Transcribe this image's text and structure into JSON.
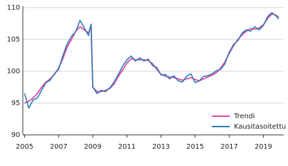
{
  "chart_data": {
    "type": "line",
    "x": [
      2005,
      2005.25,
      2005.5,
      2005.75,
      2006,
      2006.25,
      2006.5,
      2006.75,
      2007,
      2007.25,
      2007.5,
      2007.75,
      2008,
      2008.25,
      2008.5,
      2008.75,
      2008.9,
      2009,
      2009.25,
      2009.5,
      2009.75,
      2010,
      2010.25,
      2010.5,
      2010.75,
      2011,
      2011.25,
      2011.5,
      2011.75,
      2012,
      2012.25,
      2012.5,
      2012.75,
      2013,
      2013.25,
      2013.5,
      2013.75,
      2014,
      2014.25,
      2014.5,
      2014.75,
      2015,
      2015.25,
      2015.5,
      2015.75,
      2016,
      2016.25,
      2016.5,
      2016.75,
      2017,
      2017.25,
      2017.5,
      2017.75,
      2018,
      2018.25,
      2018.5,
      2018.75,
      2019,
      2019.25,
      2019.5,
      2019.75,
      2019.9
    ],
    "series": [
      {
        "name": "Trendi",
        "color": "#e8489b",
        "values": [
          95,
          95.3,
          95.8,
          96.5,
          97.5,
          98.3,
          98.8,
          99.5,
          100.5,
          102,
          103.8,
          105,
          106.3,
          107,
          106.5,
          106,
          107.3,
          97.5,
          96.8,
          96.8,
          97,
          97.3,
          98,
          99.2,
          100.2,
          101.3,
          102,
          101.8,
          101.8,
          101.8,
          101.7,
          101.2,
          100.3,
          99.5,
          99.2,
          99.1,
          99,
          98.8,
          98.6,
          98.8,
          99,
          98.7,
          98.5,
          98.8,
          99.1,
          99.4,
          99.8,
          100.5,
          101.5,
          102.8,
          104,
          105,
          105.7,
          106.3,
          106.7,
          106.6,
          106.8,
          107.3,
          108.3,
          109,
          108.8,
          108.5
        ]
      },
      {
        "name": "Kausitasoitettu",
        "color": "#2a7ab9",
        "values": [
          96.5,
          94.2,
          95.5,
          95.8,
          97,
          98.2,
          98.6,
          99.6,
          100.3,
          102.5,
          104.3,
          105.5,
          106.2,
          108,
          106.8,
          105.6,
          107.4,
          97.5,
          96.5,
          97,
          96.8,
          97.4,
          98.3,
          99.5,
          100.8,
          101.8,
          102.4,
          101.6,
          102.1,
          101.6,
          101.9,
          100.9,
          100.6,
          99.4,
          99.5,
          98.8,
          99.3,
          98.5,
          98.3,
          99.2,
          99.6,
          98.2,
          98.5,
          99.2,
          99.3,
          99.6,
          100.1,
          100.3,
          101.2,
          103,
          104.2,
          104.8,
          106,
          106.5,
          106.3,
          107,
          106.5,
          107.2,
          108.6,
          109.2,
          108.7,
          108.2
        ]
      }
    ],
    "xlim": [
      2004.9,
      2020.2
    ],
    "xticks": [
      2005,
      2007,
      2009,
      2011,
      2013,
      2015,
      2017,
      2019
    ],
    "ylim": [
      90,
      110
    ],
    "yticks": [
      90,
      95,
      100,
      105,
      110
    ],
    "grid": true,
    "legend": "lower right"
  }
}
